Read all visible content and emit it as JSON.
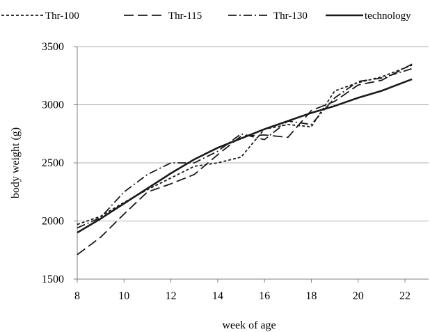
{
  "chart_data": {
    "type": "line",
    "xlabel": "week of age",
    "ylabel": "body weight (g)",
    "xlim": [
      8,
      22
    ],
    "ylim": [
      1500,
      3500
    ],
    "x_ticks": [
      8,
      10,
      12,
      14,
      16,
      18,
      20,
      22
    ],
    "y_ticks": [
      1500,
      2000,
      2500,
      3000,
      3500
    ],
    "grid": "horizontal",
    "legend_position": "top",
    "series": [
      {
        "name": "Thr-100",
        "dash": "short-dash",
        "x": [
          8,
          9,
          10,
          11,
          12,
          13,
          14,
          15,
          16,
          17,
          18,
          19,
          20,
          21,
          22.3
        ],
        "y": [
          1970,
          2040,
          2160,
          2270,
          2370,
          2470,
          2500,
          2550,
          2790,
          2830,
          2810,
          3120,
          3190,
          3240,
          3340
        ]
      },
      {
        "name": "Thr-115",
        "dash": "long-dash",
        "x": [
          8,
          9,
          10,
          11,
          12,
          13,
          14,
          15,
          16,
          17,
          18,
          19,
          20,
          21,
          22.3
        ],
        "y": [
          1710,
          1860,
          2060,
          2250,
          2320,
          2400,
          2570,
          2730,
          2740,
          2720,
          2950,
          3030,
          3170,
          3210,
          3350
        ]
      },
      {
        "name": "Thr-130",
        "dash": "dash-dot",
        "x": [
          8,
          9,
          10,
          11,
          12,
          13,
          14,
          15,
          16,
          17,
          18,
          19,
          20,
          21,
          22.3
        ],
        "y": [
          1940,
          2030,
          2250,
          2400,
          2500,
          2500,
          2600,
          2750,
          2700,
          2860,
          2830,
          3060,
          3200,
          3230,
          3310
        ]
      },
      {
        "name": "technology",
        "dash": "solid",
        "x": [
          8,
          9,
          10,
          11,
          12,
          13,
          14,
          15,
          16,
          17,
          18,
          19,
          20,
          21,
          22.3
        ],
        "y": [
          1900,
          2020,
          2150,
          2280,
          2410,
          2530,
          2630,
          2710,
          2790,
          2860,
          2930,
          2990,
          3060,
          3120,
          3220
        ]
      }
    ]
  }
}
